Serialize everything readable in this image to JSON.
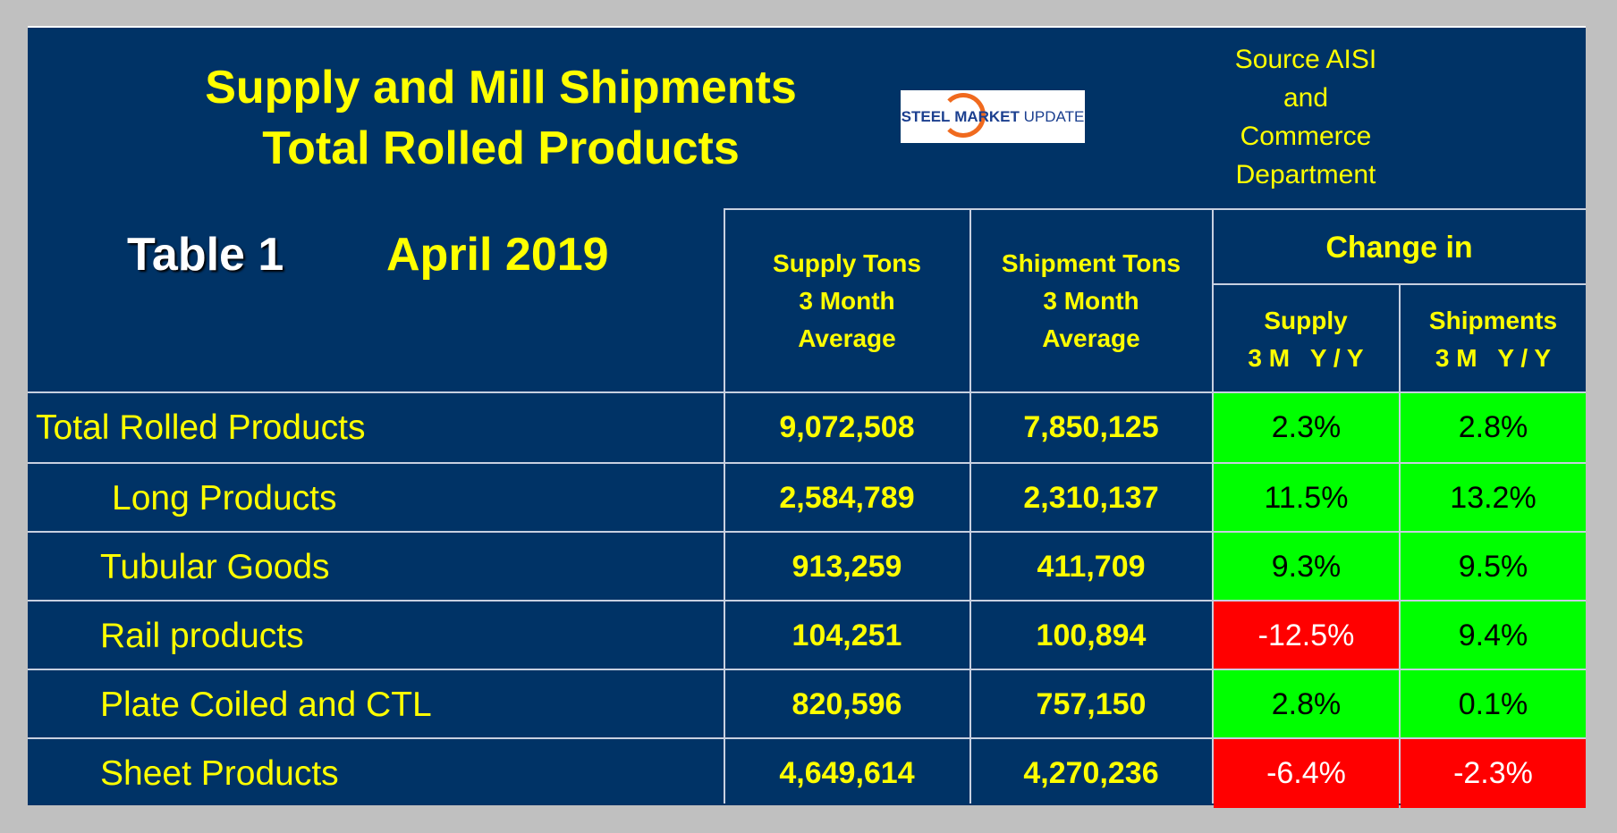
{
  "title_line1": "Supply and Mill Shipments",
  "title_line2": "Total Rolled Products",
  "logo_text": {
    "part1": "STEEL",
    "part2": "MARKET",
    "part3": "UPDATE"
  },
  "source_lines": [
    "Source AISI",
    "and",
    "Commerce",
    "Department"
  ],
  "table_label": "Table 1",
  "period": "April 2019",
  "headers": {
    "supply": [
      "Supply Tons",
      "3 Month",
      "Average"
    ],
    "shipment": [
      "Shipment Tons",
      "3 Month",
      "Average"
    ],
    "change_in": "Change in",
    "change_supply": [
      "Supply",
      "3 M   Y / Y"
    ],
    "change_shipments": [
      "Shipments",
      "3 M   Y / Y"
    ]
  },
  "colors": {
    "positive": "#00ff00",
    "negative": "#ff0000",
    "background": "#003366"
  },
  "rows": [
    {
      "label": "Total Rolled Products",
      "supply": "9,072,508",
      "shipments": "7,850,125",
      "supply_change": "2.3%",
      "shipments_change": "2.8%"
    },
    {
      "label": "Long Products",
      "supply": "2,584,789",
      "shipments": "2,310,137",
      "supply_change": "11.5%",
      "shipments_change": "13.2%"
    },
    {
      "label": "Tubular Goods",
      "supply": "913,259",
      "shipments": "411,709",
      "supply_change": "9.3%",
      "shipments_change": "9.5%"
    },
    {
      "label": "Rail products",
      "supply": "104,251",
      "shipments": "100,894",
      "supply_change": "-12.5%",
      "shipments_change": "9.4%"
    },
    {
      "label": "Plate Coiled and CTL",
      "supply": "820,596",
      "shipments": "757,150",
      "supply_change": "2.8%",
      "shipments_change": "0.1%"
    },
    {
      "label": "Sheet Products",
      "supply": "4,649,614",
      "shipments": "4,270,236",
      "supply_change": "-6.4%",
      "shipments_change": "-2.3%"
    }
  ]
}
